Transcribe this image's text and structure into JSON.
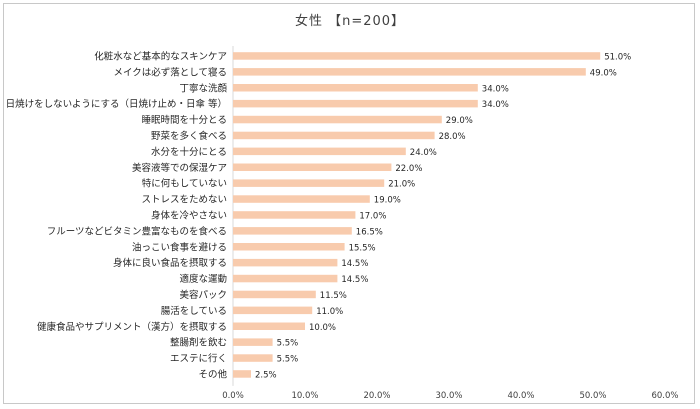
{
  "chart_data": {
    "type": "bar",
    "orientation": "horizontal",
    "title": "女性 【n=200】",
    "categories": [
      "化粧水など基本的なスキンケア",
      "メイクは必ず落として寝る",
      "丁寧な洗顔",
      "日焼けをしないようにする（日焼け止め・日傘 等）",
      "睡眠時間を十分とる",
      "野菜を多く食べる",
      "水分を十分にとる",
      "美容液等での保湿ケア",
      "特に何もしていない",
      "ストレスをためない",
      "身体を冷やさない",
      "フルーツなどビタミン豊富なものを食べる",
      "油っこい食事を避ける",
      "身体に良い食品を摂取する",
      "適度な運動",
      "美容パック",
      "腸活をしている",
      "健康食品やサプリメント（漢方）を摂取する",
      "整腸剤を飲む",
      "エステに行く",
      "その他"
    ],
    "values": [
      51.0,
      49.0,
      34.0,
      34.0,
      29.0,
      28.0,
      24.0,
      22.0,
      21.0,
      19.0,
      17.0,
      16.5,
      15.5,
      14.5,
      14.5,
      11.5,
      11.0,
      10.0,
      5.5,
      5.5,
      2.5
    ],
    "value_labels": [
      "51.0%",
      "49.0%",
      "34.0%",
      "34.0%",
      "29.0%",
      "28.0%",
      "24.0%",
      "22.0%",
      "21.0%",
      "19.0%",
      "17.0%",
      "16.5%",
      "15.5%",
      "14.5%",
      "14.5%",
      "11.5%",
      "11.0%",
      "10.0%",
      "5.5%",
      "5.5%",
      "2.5%"
    ],
    "xlim": [
      0,
      60
    ],
    "xticks": [
      "0.0%",
      "10.0%",
      "20.0%",
      "30.0%",
      "40.0%",
      "50.0%",
      "60.0%"
    ],
    "grid": false,
    "bar_color": "#f8cbad"
  }
}
